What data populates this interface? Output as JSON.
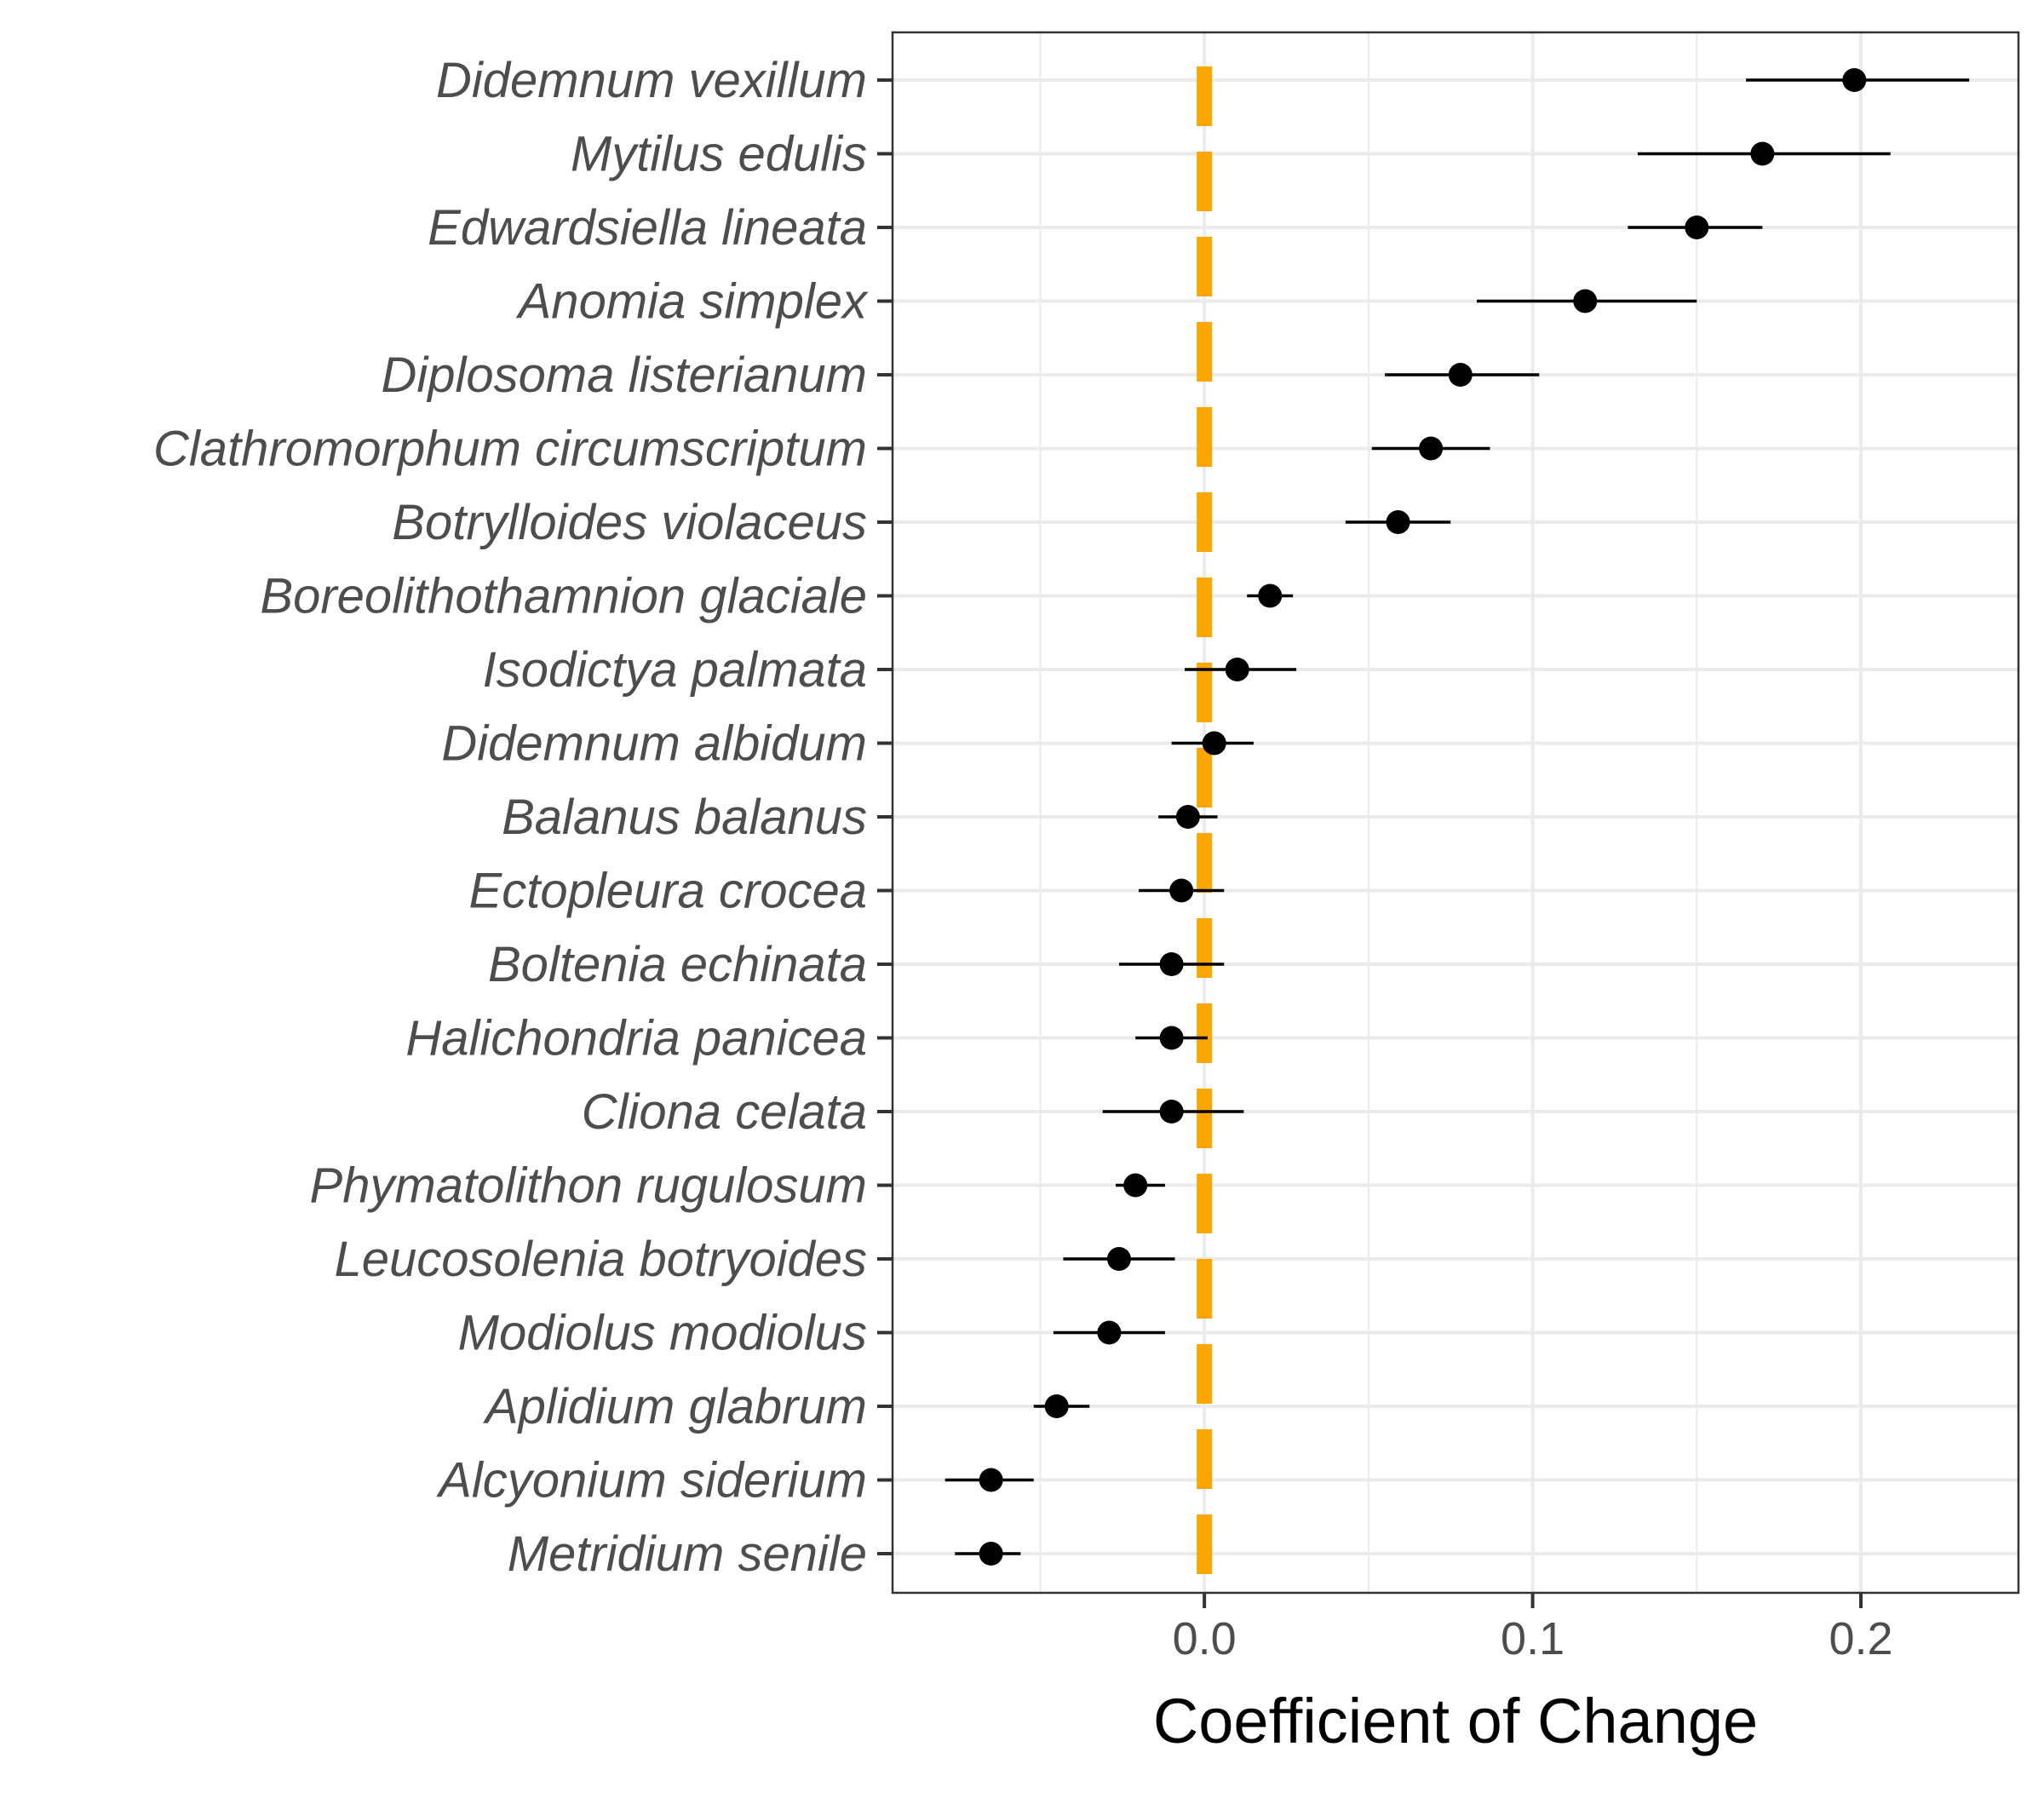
{
  "chart_data": {
    "type": "scatter",
    "subtype": "dot-and-whisker",
    "title": "",
    "xlabel": "Coefficient of Change",
    "ylabel": "",
    "xlim": [
      -0.095,
      0.248
    ],
    "x_ticks": [
      0.0,
      0.1,
      0.2
    ],
    "x_tick_labels": [
      "0.0",
      "0.1",
      "0.2"
    ],
    "grid": true,
    "reference_line": {
      "x": 0.0,
      "style": "dashed",
      "color": "#FFA500"
    },
    "point_color": "#000000",
    "categories": [
      "Didemnum vexillum",
      "Mytilus edulis",
      "Edwardsiella lineata",
      "Anomia simplex",
      "Diplosoma listerianum",
      "Clathromorphum circumscriptum",
      "Botrylloides violaceus",
      "Boreolithothamnion glaciale",
      "Isodictya palmata",
      "Didemnum albidum",
      "Balanus balanus",
      "Ectopleura crocea",
      "Boltenia echinata",
      "Halichondria panicea",
      "Cliona celata",
      "Phymatolithon rugulosum",
      "Leucosolenia botryoides",
      "Modiolus modiolus",
      "Aplidium glabrum",
      "Alcyonium siderium",
      "Metridium senile"
    ],
    "estimates": [
      0.198,
      0.17,
      0.15,
      0.116,
      0.078,
      0.069,
      0.059,
      0.02,
      0.01,
      0.003,
      -0.005,
      -0.007,
      -0.01,
      -0.01,
      -0.01,
      -0.021,
      -0.026,
      -0.029,
      -0.045,
      -0.065,
      -0.065
    ],
    "lower": [
      0.165,
      0.132,
      0.129,
      0.083,
      0.055,
      0.051,
      0.043,
      0.013,
      -0.006,
      -0.01,
      -0.014,
      -0.02,
      -0.026,
      -0.021,
      -0.031,
      -0.027,
      -0.043,
      -0.046,
      -0.052,
      -0.079,
      -0.076
    ],
    "upper": [
      0.233,
      0.209,
      0.17,
      0.15,
      0.102,
      0.087,
      0.075,
      0.027,
      0.028,
      0.015,
      0.004,
      0.006,
      0.006,
      0.001,
      0.012,
      -0.012,
      -0.009,
      -0.012,
      -0.035,
      -0.052,
      -0.056
    ]
  }
}
